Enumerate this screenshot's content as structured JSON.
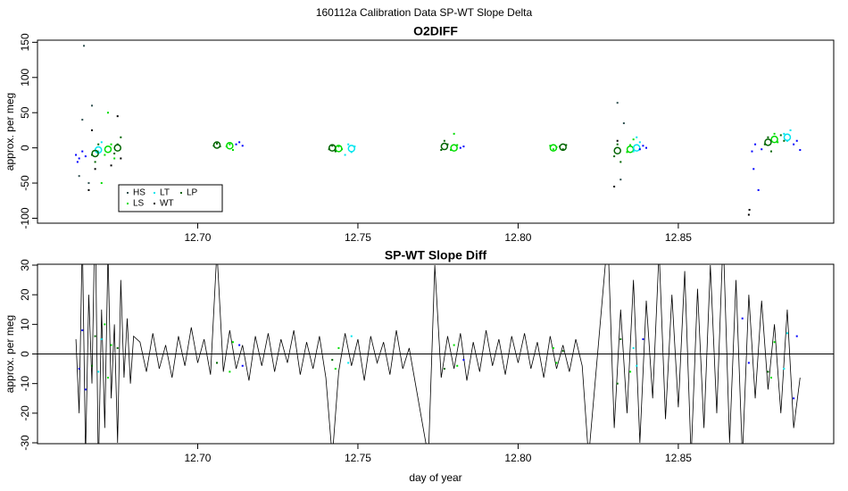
{
  "title": "160112a   Calibration Data SP-WT Slope Delta",
  "chart_data": [
    {
      "type": "scatter",
      "title": "O2DIFF",
      "ylabel": "approx. per meg",
      "xlim": [
        12.65,
        12.8985
      ],
      "ylim": [
        -107,
        153
      ],
      "xticks": [
        {
          "value": 12.7,
          "label": "12.70"
        },
        12.75,
        {
          "value": 12.8,
          "label": "12.80"
        },
        12.85
      ],
      "yticks": [
        -100,
        -50,
        0,
        50,
        100,
        150
      ],
      "legend": "bottom-left",
      "series": [
        {
          "name": "HS",
          "color": "#2f4f4f",
          "x": [
            12.6645,
            12.664,
            12.666,
            12.667,
            12.663,
            12.831,
            12.832,
            12.833
          ],
          "y": [
            145,
            40,
            -50,
            60,
            -40,
            64,
            -45,
            35
          ]
        },
        {
          "name": "LS",
          "color": "#00dd00",
          "x": [
            12.67,
            12.671,
            12.672,
            12.673,
            12.674,
            12.709,
            12.71,
            12.711,
            12.743,
            12.744,
            12.745,
            12.779,
            12.78,
            12.781,
            12.81,
            12.811,
            12.812,
            12.834,
            12.835,
            12.836,
            12.879,
            12.88,
            12.881
          ],
          "y": [
            -50,
            -10,
            50,
            5,
            -15,
            2,
            5,
            -3,
            -4,
            2,
            -2,
            -3,
            20,
            4,
            3,
            -2,
            1,
            -6,
            4,
            12,
            10,
            20,
            8
          ],
          "mean_x": [
            12.672,
            12.71,
            12.744,
            12.78,
            12.811,
            12.835,
            12.88
          ],
          "mean_y": [
            -2,
            3,
            -1,
            0,
            0,
            -2,
            12
          ]
        },
        {
          "name": "LT",
          "color": "#00e5ee",
          "x": [
            12.669,
            12.67,
            12.746,
            12.747,
            12.748,
            12.749,
            12.836,
            12.837,
            12.838,
            12.883,
            12.884,
            12.885
          ],
          "y": [
            -5,
            8,
            -10,
            5,
            -6,
            2,
            -5,
            15,
            8,
            20,
            10,
            25
          ],
          "mean_x": [
            12.669,
            12.748,
            12.837,
            12.884
          ],
          "mean_y": [
            -3,
            -1,
            0,
            15
          ]
        },
        {
          "name": "WT",
          "color": "#000000",
          "x": [
            12.666,
            12.667,
            12.668,
            12.673,
            12.675,
            12.676,
            12.83,
            12.831,
            12.872,
            12.8722
          ],
          "y": [
            -60,
            25,
            -30,
            -25,
            45,
            -15,
            -55,
            10,
            -95,
            -88
          ]
        },
        {
          "name": "LP",
          "color": "#006400",
          "x": [
            12.667,
            12.668,
            12.669,
            12.674,
            12.675,
            12.676,
            12.705,
            12.706,
            12.707,
            12.741,
            12.742,
            12.743,
            12.776,
            12.777,
            12.778,
            12.813,
            12.814,
            12.815,
            12.83,
            12.831,
            12.832,
            12.877,
            12.878,
            12.879,
            12.882,
            12.883
          ],
          "y": [
            -10,
            -20,
            5,
            -8,
            5,
            15,
            3,
            6,
            2,
            -2,
            3,
            -5,
            -3,
            10,
            5,
            2,
            -2,
            4,
            -12,
            5,
            -20,
            5,
            15,
            -5,
            18,
            10
          ],
          "mean_x": [
            12.668,
            12.675,
            12.706,
            12.742,
            12.777,
            12.814,
            12.831,
            12.878
          ],
          "mean_y": [
            -8,
            0,
            4,
            0,
            2,
            1,
            -4,
            8
          ]
        },
        {
          "color": "#0000ff",
          "x": [
            12.662,
            12.663,
            12.664,
            12.665,
            12.6625,
            12.712,
            12.713,
            12.714,
            12.782,
            12.783,
            12.838,
            12.839,
            12.84,
            12.873,
            12.874,
            12.875,
            12.876,
            12.8735,
            12.886,
            12.887,
            12.888
          ],
          "y": [
            -10,
            -15,
            -5,
            -12,
            -20,
            5,
            8,
            3,
            0,
            2,
            -2,
            3,
            0,
            -5,
            5,
            -60,
            -2,
            -30,
            5,
            10,
            -3
          ]
        }
      ]
    },
    {
      "type": "line",
      "title": "SP-WT Slope Diff",
      "ylabel": "approx. per meg",
      "xlabel": "day of year",
      "xlim": [
        12.65,
        12.8985
      ],
      "ylim": [
        -30.3,
        30.3
      ],
      "xticks": [
        {
          "value": 12.7,
          "label": "12.70"
        },
        12.75,
        {
          "value": 12.8,
          "label": "12.80"
        },
        12.85
      ],
      "yticks": [
        -30,
        -20,
        -10,
        0,
        10,
        20,
        30
      ],
      "hline": 0,
      "series": [
        {
          "style": "line",
          "color": "#000000",
          "x": [
            12.662,
            12.663,
            12.664,
            12.665,
            12.666,
            12.667,
            12.668,
            12.669,
            12.67,
            12.671,
            12.672,
            12.673,
            12.674,
            12.675,
            12.676,
            12.677,
            12.678,
            12.679,
            12.68,
            12.682,
            12.684,
            12.686,
            12.688,
            12.69,
            12.692,
            12.694,
            12.696,
            12.698,
            12.7,
            12.702,
            12.704,
            12.706,
            12.708,
            12.71,
            12.712,
            12.714,
            12.716,
            12.718,
            12.72,
            12.722,
            12.724,
            12.726,
            12.728,
            12.73,
            12.732,
            12.734,
            12.736,
            12.738,
            12.74,
            12.742,
            12.744,
            12.746,
            12.748,
            12.75,
            12.752,
            12.754,
            12.756,
            12.758,
            12.76,
            12.762,
            12.764,
            12.766,
            12.772,
            12.774,
            12.776,
            12.778,
            12.78,
            12.782,
            12.784,
            12.786,
            12.788,
            12.79,
            12.792,
            12.794,
            12.796,
            12.798,
            12.8,
            12.802,
            12.804,
            12.806,
            12.808,
            12.81,
            12.812,
            12.814,
            12.816,
            12.818,
            12.82,
            12.822,
            12.828,
            12.83,
            12.832,
            12.834,
            12.836,
            12.838,
            12.84,
            12.842,
            12.844,
            12.846,
            12.848,
            12.85,
            12.852,
            12.854,
            12.856,
            12.858,
            12.86,
            12.862,
            12.864,
            12.866,
            12.868,
            12.87,
            12.872,
            12.874,
            12.876,
            12.878,
            12.88,
            12.882,
            12.884,
            12.886,
            12.888
          ],
          "y": [
            5,
            -20,
            40,
            -35,
            20,
            -10,
            50,
            -40,
            15,
            -25,
            35,
            -15,
            10,
            -30,
            25,
            -8,
            12,
            -10,
            6,
            4,
            -6,
            7,
            -5,
            3,
            -8,
            6,
            -4,
            9,
            -3,
            5,
            -7,
            35,
            -6,
            8,
            -5,
            3,
            -9,
            6,
            -4,
            7,
            -6,
            5,
            -3,
            8,
            -7,
            4,
            -5,
            6,
            -8,
            -35,
            -6,
            7,
            -4,
            5,
            -9,
            6,
            -3,
            4,
            -7,
            8,
            -5,
            2,
            -35,
            30,
            -8,
            6,
            -5,
            7,
            -9,
            4,
            -6,
            8,
            -4,
            5,
            -7,
            6,
            -3,
            7,
            -5,
            4,
            -8,
            6,
            -5,
            3,
            -6,
            5,
            -4,
            -35,
            40,
            -25,
            15,
            -20,
            25,
            -30,
            18,
            -15,
            35,
            -22,
            20,
            -18,
            28,
            -35,
            22,
            -25,
            30,
            -20,
            40,
            -30,
            25,
            -35,
            20,
            -15,
            18,
            -12,
            10,
            -20,
            15,
            -25,
            -8
          ]
        },
        {
          "style": "points",
          "color": "#006400",
          "x": [
            12.667,
            12.668,
            12.675,
            12.706,
            12.742,
            12.777,
            12.814,
            12.831,
            12.832,
            12.878
          ],
          "y": [
            -4,
            6,
            2,
            -3,
            -2,
            -5,
            1,
            -10,
            5,
            -6
          ]
        },
        {
          "style": "points",
          "color": "#00dd00",
          "x": [
            12.671,
            12.672,
            12.673,
            12.71,
            12.711,
            12.743,
            12.744,
            12.78,
            12.781,
            12.811,
            12.812,
            12.835,
            12.879,
            12.88
          ],
          "y": [
            10,
            -8,
            3,
            -6,
            4,
            -5,
            2,
            3,
            -4,
            2,
            -3,
            -6,
            -8,
            4
          ]
        },
        {
          "style": "points",
          "color": "#00e5ee",
          "x": [
            12.669,
            12.67,
            12.747,
            12.748,
            12.836,
            12.837,
            12.883,
            12.884
          ],
          "y": [
            -6,
            5,
            -3,
            6,
            2,
            -4,
            -5,
            7
          ]
        },
        {
          "style": "points",
          "color": "#0000ff",
          "x": [
            12.663,
            12.664,
            12.665,
            12.713,
            12.714,
            12.783,
            12.839,
            12.87,
            12.872,
            12.886,
            12.887
          ],
          "y": [
            -5,
            8,
            -12,
            3,
            -4,
            -2,
            5,
            12,
            -3,
            -15,
            6
          ]
        }
      ]
    }
  ]
}
